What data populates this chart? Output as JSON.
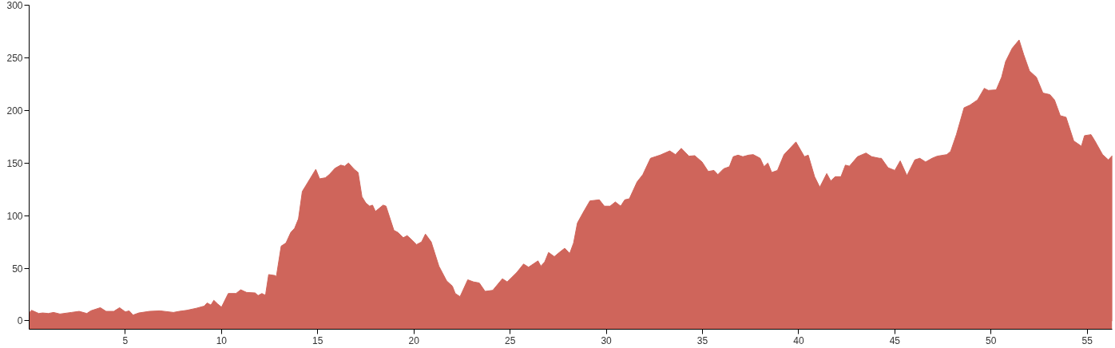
{
  "chart_data": {
    "type": "area",
    "x": [
      0.02,
      0.13,
      0.5,
      0.7,
      1.0,
      1.27,
      1.6,
      2.2,
      2.6,
      3.0,
      3.2,
      3.7,
      4.0,
      4.4,
      4.7,
      5.0,
      5.2,
      5.4,
      5.7,
      6.25,
      6.8,
      7.5,
      7.8,
      8.2,
      8.7,
      9.1,
      9.25,
      9.45,
      9.6,
      9.8,
      10.0,
      10.35,
      10.75,
      11.0,
      11.3,
      11.75,
      11.9,
      12.1,
      12.25,
      12.3,
      12.45,
      12.8,
      12.85,
      13.1,
      13.35,
      13.6,
      13.8,
      14.0,
      14.2,
      14.4,
      14.9,
      15.1,
      15.4,
      15.6,
      15.9,
      16.2,
      16.4,
      16.6,
      16.9,
      17.1,
      17.3,
      17.5,
      17.7,
      17.85,
      18.0,
      18.4,
      18.55,
      18.96,
      19.17,
      19.45,
      19.65,
      19.86,
      20.14,
      20.4,
      20.6,
      20.9,
      21.3,
      21.7,
      22.0,
      22.15,
      22.4,
      22.8,
      23.1,
      23.4,
      23.7,
      24.1,
      24.6,
      24.85,
      25.35,
      25.7,
      25.96,
      26.45,
      26.6,
      26.8,
      27.0,
      27.3,
      27.56,
      27.84,
      28.1,
      28.3,
      28.5,
      28.8,
      29.15,
      29.64,
      29.9,
      30.2,
      30.47,
      30.75,
      30.96,
      31.2,
      31.6,
      31.9,
      32.3,
      32.55,
      32.8,
      33.3,
      33.6,
      33.9,
      34.3,
      34.6,
      34.98,
      35.3,
      35.6,
      35.8,
      36.1,
      36.4,
      36.6,
      36.85,
      37.1,
      37.4,
      37.64,
      38.0,
      38.2,
      38.4,
      38.6,
      38.9,
      39.24,
      39.5,
      39.86,
      40.3,
      40.5,
      40.83,
      41.1,
      41.46,
      41.67,
      41.9,
      42.2,
      42.43,
      42.64,
      43.06,
      43.5,
      43.8,
      44.2,
      44.3,
      44.65,
      45.0,
      45.28,
      45.63,
      46.04,
      46.3,
      46.6,
      46.94,
      47.2,
      47.7,
      47.9,
      48.2,
      48.6,
      48.9,
      49.3,
      49.65,
      49.86,
      50.27,
      50.55,
      50.76,
      51.1,
      51.46,
      51.7,
      52.0,
      52.36,
      52.7,
      53.06,
      53.3,
      53.6,
      53.9,
      54.3,
      54.7,
      54.86,
      55.2,
      55.4,
      55.8,
      56.1,
      56.3
    ],
    "series": [
      {
        "color": "#cf655b",
        "values": [
          8,
          10,
          7,
          7.5,
          7,
          8,
          6.5,
          8,
          9,
          7,
          9.5,
          12.5,
          9,
          9,
          12.5,
          8.5,
          9.5,
          5.5,
          7.5,
          9,
          9.5,
          8,
          9,
          10,
          12,
          14,
          17,
          15,
          19.5,
          16,
          13,
          26,
          26,
          29.5,
          27,
          26.5,
          24,
          26,
          24.5,
          26,
          44,
          43,
          42,
          71,
          74,
          84,
          88,
          97,
          123,
          129,
          144,
          135,
          136,
          139,
          145,
          148,
          147,
          150,
          144,
          141,
          118,
          112,
          109,
          110,
          104,
          110,
          109,
          86,
          84,
          79,
          81,
          77.5,
          72.5,
          75,
          82.5,
          75,
          52,
          38,
          33,
          26,
          23,
          39,
          37,
          36,
          28,
          29,
          40,
          37,
          46,
          54,
          51,
          57,
          52,
          56,
          65,
          61,
          65,
          69,
          64,
          74,
          93,
          103,
          114,
          115,
          109,
          109,
          113,
          109,
          115,
          116,
          132,
          139,
          154.5,
          156,
          157.5,
          161.5,
          158,
          164,
          156.5,
          157,
          151,
          142,
          143,
          139,
          144.5,
          146.5,
          156,
          157.5,
          156,
          157.5,
          158,
          154.5,
          146.5,
          150,
          141,
          143,
          158,
          163,
          170,
          156,
          157.5,
          137,
          127,
          140,
          133,
          137,
          137,
          148,
          147,
          156,
          159.5,
          156,
          154.5,
          154.5,
          145.5,
          143,
          152,
          138,
          153,
          154.5,
          151,
          154.5,
          156.5,
          158,
          161,
          177,
          202.5,
          205,
          210,
          221,
          219,
          219.5,
          231.5,
          246.5,
          259,
          267,
          253,
          237.5,
          231.5,
          216.5,
          215,
          210,
          195,
          193.5,
          171,
          166,
          176,
          177,
          171,
          158,
          153,
          157
        ]
      }
    ],
    "xlim": [
      0,
      56.3
    ],
    "ylim": [
      -8,
      300
    ],
    "xticks": [
      5,
      10,
      15,
      20,
      25,
      30,
      35,
      40,
      45,
      50,
      55
    ],
    "yticks": [
      0,
      50,
      100,
      150,
      200,
      250,
      300
    ],
    "bands": [
      {
        "axis": "y",
        "from": -8,
        "to": 0,
        "color": "#cf655b"
      }
    ],
    "grid": false
  }
}
